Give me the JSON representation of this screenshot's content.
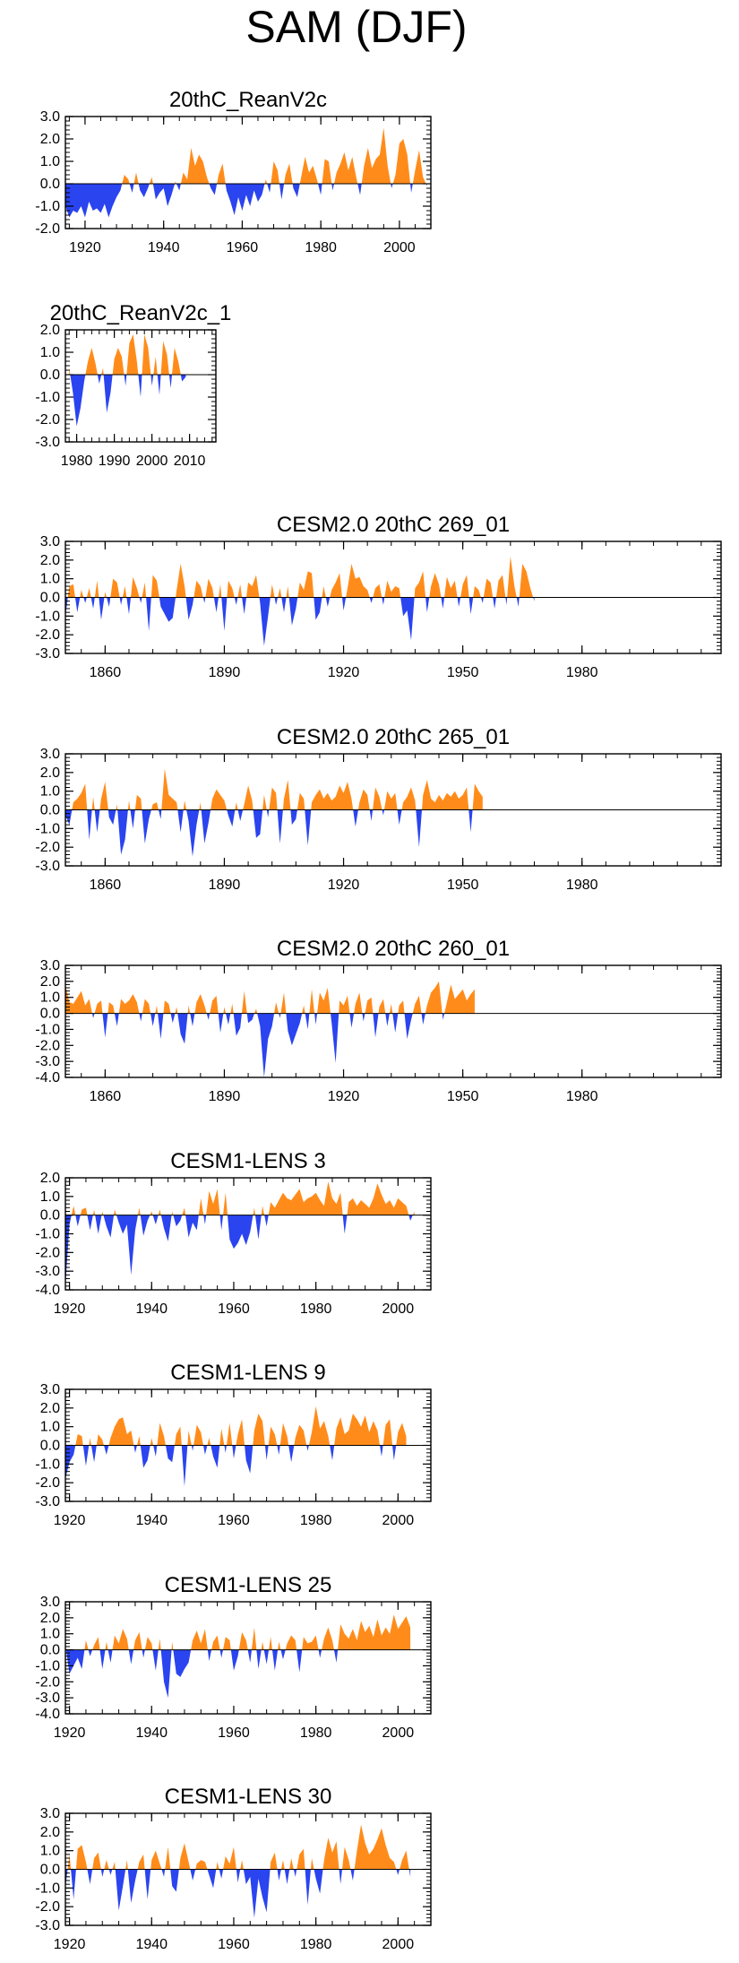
{
  "figure_title": "SAM (DJF)",
  "colors": {
    "positive": "#ff8c1a",
    "negative": "#2a44f0"
  },
  "chart_data": [
    {
      "type": "area",
      "title": "20thC_ReanV2c",
      "xlim": [
        1915,
        2008
      ],
      "ylim": [
        -2.0,
        3.0
      ],
      "yticks": [
        3.0,
        2.0,
        1.0,
        0.0,
        -1.0,
        -2.0
      ],
      "ytick_labels": [
        "3.0",
        "2.0",
        "1.0",
        "0.0",
        "-1.0",
        "-2.0"
      ],
      "xticks": [
        1920,
        1940,
        1960,
        1980,
        2000
      ],
      "xtick_labels": [
        "1920",
        "1940",
        "1960",
        "1980",
        "2000"
      ],
      "x_start": 1915,
      "values": [
        -1.0,
        -1.5,
        -1.2,
        -1.3,
        -1.0,
        -1.5,
        -0.8,
        -1.2,
        -1.1,
        -1.3,
        -0.9,
        -1.5,
        -1.0,
        -0.6,
        -0.3,
        0.4,
        0.2,
        -0.4,
        0.5,
        -0.3,
        -0.6,
        -0.2,
        0.3,
        -0.7,
        -0.4,
        -0.2,
        -1.0,
        -0.5,
        0.1,
        -0.3,
        0.5,
        0.2,
        1.6,
        0.8,
        1.3,
        1.0,
        0.3,
        -0.2,
        -0.5,
        0.4,
        0.9,
        -0.3,
        -0.8,
        -1.4,
        -0.6,
        -1.2,
        -0.5,
        -1.0,
        -0.3,
        -0.8,
        -0.5,
        0.2,
        -0.4,
        1.0,
        0.6,
        -0.7,
        0.4,
        0.9,
        -0.2,
        -0.6,
        0.3,
        1.2,
        0.5,
        0.8,
        0.2,
        -0.5,
        1.1,
        1.0,
        -0.3,
        0.5,
        0.9,
        1.4,
        0.6,
        1.2,
        0.3,
        -0.5,
        0.8,
        1.6,
        0.7,
        1.1,
        1.3,
        2.5,
        0.8,
        -0.2,
        0.4,
        1.8,
        2.0,
        1.3,
        -0.4,
        0.6,
        1.5,
        0.3,
        -0.1
      ]
    },
    {
      "type": "area",
      "title": "20thC_ReanV2c_1",
      "xlim": [
        1977,
        2017
      ],
      "ylim": [
        -3.0,
        2.0
      ],
      "yticks": [
        2.0,
        1.0,
        0.0,
        -1.0,
        -2.0,
        -3.0
      ],
      "ytick_labels": [
        "2.0",
        "1.0",
        "0.0",
        "-1.0",
        "-2.0",
        "-3.0"
      ],
      "xticks": [
        1980,
        1990,
        2000,
        2010
      ],
      "xtick_labels": [
        "1980",
        "1990",
        "2000",
        "2010"
      ],
      "x_start": 1978,
      "values": [
        0.3,
        -0.8,
        -2.3,
        -1.5,
        -0.3,
        0.6,
        1.2,
        0.5,
        -0.4,
        0.3,
        -1.7,
        -0.8,
        0.7,
        1.2,
        0.8,
        -0.5,
        1.4,
        1.8,
        0.6,
        -1.0,
        1.8,
        1.2,
        -0.5,
        0.8,
        -0.9,
        1.5,
        0.9,
        -0.6,
        1.2,
        0.6,
        -0.3,
        -0.1
      ]
    },
    {
      "type": "area",
      "title": "CESM2.0 20thC 269_01",
      "xlim": [
        1850,
        2015
      ],
      "ylim": [
        -3.0,
        3.0
      ],
      "yticks": [
        3.0,
        2.0,
        1.0,
        0.0,
        -1.0,
        -2.0,
        -3.0
      ],
      "ytick_labels": [
        "3.0",
        "2.0",
        "1.0",
        "0.0",
        "-1.0",
        "-2.0",
        "-3.0"
      ],
      "xticks": [
        1860,
        1890,
        1920,
        1950,
        1980
      ],
      "xtick_labels": [
        "1860",
        "1890",
        "1920",
        "1950",
        "1980"
      ],
      "x_start": 1850,
      "values": [
        -1.0,
        0.6,
        0.7,
        -0.8,
        0.4,
        -0.3,
        0.5,
        -0.6,
        0.9,
        -1.2,
        0.3,
        -0.5,
        1.0,
        0.8,
        -0.4,
        0.6,
        -0.9,
        1.1,
        0.5,
        -0.3,
        0.8,
        -1.8,
        1.2,
        0.9,
        -0.5,
        -0.9,
        -1.3,
        -1.1,
        0.4,
        1.8,
        0.6,
        -1.2,
        -0.4,
        0.9,
        0.6,
        -0.3,
        1.0,
        0.5,
        -0.8,
        0.7,
        -1.8,
        0.9,
        0.5,
        -0.4,
        0.7,
        -0.9,
        0.8,
        0.6,
        1.2,
        -0.3,
        -2.6,
        -1.0,
        0.7,
        -0.4,
        0.5,
        -0.8,
        0.6,
        -1.5,
        -0.6,
        0.8,
        0.4,
        1.4,
        1.3,
        -1.2,
        -0.8,
        0.6,
        -0.5,
        0.4,
        0.8,
        1.3,
        -0.7,
        0.5,
        1.8,
        1.0,
        1.1,
        0.6,
        0.4,
        -0.3,
        0.5,
        0.7,
        -0.4,
        0.9,
        0.3,
        0.6,
        0.5,
        -1.0,
        -0.7,
        -2.3,
        0.5,
        0.8,
        1.4,
        -0.8,
        0.6,
        1.3,
        0.7,
        -0.6,
        1.1,
        0.5,
        0.9,
        -0.5,
        0.7,
        1.2,
        -0.9,
        0.6,
        0.4,
        -0.3,
        1.0,
        0.8,
        -0.6,
        0.9,
        1.2,
        -0.4,
        2.2,
        0.6,
        -0.5,
        1.8,
        1.4,
        0.5,
        -0.2
      ]
    },
    {
      "type": "area",
      "title": "CESM2.0 20thC 265_01",
      "xlim": [
        1850,
        2015
      ],
      "ylim": [
        -3.0,
        3.0
      ],
      "yticks": [
        3.0,
        2.0,
        1.0,
        0.0,
        -1.0,
        -2.0,
        -3.0
      ],
      "ytick_labels": [
        "3.0",
        "2.0",
        "1.0",
        "0.0",
        "-1.0",
        "-2.0",
        "-3.0"
      ],
      "xticks": [
        1860,
        1890,
        1920,
        1950,
        1980
      ],
      "xtick_labels": [
        "1860",
        "1890",
        "1920",
        "1950",
        "1980"
      ],
      "x_start": 1850,
      "values": [
        -0.3,
        -0.8,
        0.4,
        0.6,
        0.9,
        1.4,
        -1.6,
        0.7,
        -1.2,
        0.6,
        1.5,
        -0.4,
        -0.8,
        0.3,
        -2.4,
        -1.6,
        0.5,
        -1.0,
        0.8,
        0.6,
        -1.8,
        -0.5,
        0.3,
        0.4,
        -0.5,
        2.2,
        0.8,
        0.6,
        0.4,
        -1.2,
        0.5,
        -0.6,
        -2.5,
        -0.8,
        0.4,
        -1.8,
        -0.7,
        0.6,
        1.1,
        0.8,
        0.5,
        -0.3,
        -0.9,
        0.4,
        -0.6,
        0.3,
        1.3,
        0.5,
        -1.5,
        -1.3,
        0.8,
        -0.4,
        1.2,
        0.9,
        -1.8,
        0.6,
        1.6,
        -0.8,
        -0.5,
        0.9,
        0.6,
        -1.9,
        0.4,
        0.8,
        1.1,
        0.6,
        0.9,
        0.5,
        0.7,
        1.3,
        0.9,
        1.5,
        0.6,
        -0.9,
        0.4,
        1.1,
        0.8,
        -0.6,
        1.2,
        0.7,
        -0.3,
        1.0,
        0.6,
        0.9,
        -0.8,
        0.4,
        0.7,
        1.2,
        0.5,
        -2.0,
        0.8,
        1.6,
        0.6,
        0.4,
        0.8,
        0.5,
        0.9,
        0.7,
        1.0,
        0.6,
        0.8,
        1.2,
        -1.2,
        1.4,
        1.0,
        0.7
      ]
    },
    {
      "type": "area",
      "title": "CESM2.0 20thC 260_01",
      "xlim": [
        1850,
        2015
      ],
      "ylim": [
        -4.0,
        3.0
      ],
      "yticks": [
        3.0,
        2.0,
        1.0,
        0.0,
        -1.0,
        -2.0,
        -3.0,
        -4.0
      ],
      "ytick_labels": [
        "3.0",
        "2.0",
        "1.0",
        "0.0",
        "-1.0",
        "-2.0",
        "-3.0",
        "-4.0"
      ],
      "xticks": [
        1860,
        1890,
        1920,
        1950,
        1980
      ],
      "xtick_labels": [
        "1860",
        "1890",
        "1920",
        "1950",
        "1980"
      ],
      "x_start": 1850,
      "values": [
        1.8,
        0.7,
        0.6,
        1.0,
        1.4,
        0.5,
        0.9,
        -0.3,
        0.6,
        0.8,
        -1.5,
        0.7,
        0.5,
        -0.8,
        0.9,
        0.6,
        0.8,
        1.2,
        0.7,
        -0.5,
        0.9,
        0.6,
        -0.8,
        0.5,
        -1.6,
        0.8,
        0.6,
        -0.6,
        0.4,
        -1.3,
        -1.9,
        0.5,
        -0.8,
        0.7,
        1.2,
        0.5,
        -0.4,
        0.8,
        1.1,
        -1.2,
        0.4,
        -0.7,
        0.6,
        -1.4,
        -0.9,
        1.4,
        -0.6,
        -0.4,
        0.3,
        -0.8,
        -4.0,
        -1.6,
        -0.8,
        0.7,
        -0.3,
        1.3,
        -1.1,
        -2.0,
        -1.3,
        -0.6,
        0.5,
        -1.0,
        1.5,
        -0.7,
        1.3,
        0.8,
        1.6,
        -0.6,
        -3.1,
        0.8,
        0.5,
        1.1,
        -0.9,
        0.6,
        1.3,
        -0.5,
        0.8,
        1.0,
        -1.5,
        0.4,
        0.9,
        -0.8,
        0.6,
        -1.2,
        0.5,
        0.8,
        -1.6,
        -0.4,
        0.6,
        1.1,
        -0.7,
        0.5,
        1.3,
        1.6,
        2.0,
        -0.4,
        0.7,
        1.8,
        0.9,
        1.2,
        1.5,
        0.8,
        1.2,
        1.5
      ]
    },
    {
      "type": "area",
      "title": "CESM1-LENS 3",
      "xlim": [
        1919,
        2008
      ],
      "ylim": [
        -4.0,
        2.0
      ],
      "yticks": [
        2.0,
        1.0,
        0.0,
        -1.0,
        -2.0,
        -3.0,
        -4.0
      ],
      "ytick_labels": [
        "2.0",
        "1.0",
        "0.0",
        "-1.0",
        "-2.0",
        "-3.0",
        "-4.0"
      ],
      "xticks": [
        1920,
        1940,
        1960,
        1980,
        2000
      ],
      "xtick_labels": [
        "1920",
        "1940",
        "1960",
        "1980",
        "2000"
      ],
      "x_start": 1919,
      "values": [
        -3.8,
        -0.5,
        0.5,
        -0.6,
        0.3,
        0.4,
        -0.8,
        0.3,
        -1.0,
        0.2,
        -0.6,
        -1.2,
        0.3,
        -0.4,
        -1.0,
        -0.5,
        -3.2,
        -0.8,
        0.4,
        -1.1,
        -0.3,
        0.2,
        -0.5,
        0.3,
        -0.7,
        -1.4,
        0.2,
        -0.6,
        -0.3,
        0.4,
        -1.2,
        -0.4,
        -0.8,
        0.9,
        -0.5,
        1.3,
        0.6,
        1.4,
        -0.8,
        1.2,
        -1.3,
        -1.8,
        -1.5,
        -1.0,
        -1.6,
        -0.9,
        0.4,
        -1.3,
        0.5,
        -0.6,
        0.7,
        0.4,
        0.8,
        1.2,
        0.9,
        0.8,
        1.1,
        1.4,
        0.7,
        0.9,
        1.0,
        1.2,
        0.8,
        0.5,
        1.8,
        0.9,
        0.6,
        1.2,
        -1.0,
        0.7,
        0.9,
        0.5,
        0.8,
        0.6,
        0.4,
        0.9,
        1.7,
        1.1,
        0.6,
        0.8,
        0.4,
        0.9,
        0.7,
        0.5,
        -0.3,
        0.2
      ]
    },
    {
      "type": "area",
      "title": "CESM1-LENS 9",
      "xlim": [
        1919,
        2008
      ],
      "ylim": [
        -3.0,
        3.0
      ],
      "yticks": [
        3.0,
        2.0,
        1.0,
        0.0,
        -1.0,
        -2.0,
        -3.0
      ],
      "ytick_labels": [
        "3.0",
        "2.0",
        "1.0",
        "0.0",
        "-1.0",
        "-2.0",
        "-3.0"
      ],
      "xticks": [
        1920,
        1940,
        1960,
        1980,
        2000
      ],
      "xtick_labels": [
        "1920",
        "1940",
        "1960",
        "1980",
        "2000"
      ],
      "x_start": 1919,
      "values": [
        -1.8,
        -0.9,
        -0.5,
        0.6,
        0.5,
        -1.1,
        0.4,
        -0.9,
        0.6,
        0.3,
        -0.5,
        0.4,
        1.0,
        1.4,
        1.5,
        0.6,
        0.8,
        -0.4,
        0.5,
        -1.2,
        -0.8,
        0.4,
        -0.6,
        1.2,
        0.5,
        -0.7,
        -0.9,
        0.6,
        1.0,
        -2.2,
        0.8,
        -0.3,
        1.1,
        0.7,
        -0.5,
        0.4,
        -0.6,
        -1.2,
        0.9,
        -0.4,
        1.2,
        -0.7,
        0.6,
        1.4,
        -0.8,
        -1.5,
        0.8,
        1.7,
        1.3,
        -0.8,
        1.0,
        0.6,
        -0.5,
        1.2,
        0.5,
        -0.9,
        0.4,
        1.1,
        0.8,
        -0.3,
        0.7,
        2.1,
        0.9,
        1.3,
        0.5,
        -0.8,
        0.9,
        1.5,
        0.6,
        0.8,
        1.7,
        1.4,
        1.0,
        1.6,
        0.7,
        1.3,
        0.8,
        -0.6,
        1.1,
        1.4,
        -0.8,
        0.7,
        1.2,
        0.5
      ]
    },
    {
      "type": "area",
      "title": "CESM1-LENS 25",
      "xlim": [
        1919,
        2008
      ],
      "ylim": [
        -4.0,
        3.0
      ],
      "yticks": [
        3.0,
        2.0,
        1.0,
        0.0,
        -1.0,
        -2.0,
        -3.0,
        -4.0
      ],
      "ytick_labels": [
        "3.0",
        "2.0",
        "1.0",
        "0.0",
        "-1.0",
        "-2.0",
        "-3.0",
        "-4.0"
      ],
      "xticks": [
        1920,
        1940,
        1960,
        1980,
        2000
      ],
      "xtick_labels": [
        "1920",
        "1940",
        "1960",
        "1980",
        "2000"
      ],
      "x_start": 1919,
      "values": [
        0.3,
        -1.5,
        -1.0,
        -0.5,
        -1.2,
        0.6,
        -0.4,
        0.3,
        0.8,
        -1.2,
        0.5,
        -0.8,
        0.9,
        0.4,
        1.3,
        0.7,
        -0.9,
        0.6,
        1.1,
        -0.5,
        0.8,
        0.4,
        -1.3,
        0.7,
        -2.0,
        -3.0,
        0.5,
        -1.5,
        -1.7,
        -1.2,
        -0.8,
        0.6,
        1.2,
        0.4,
        1.3,
        -0.7,
        0.5,
        0.9,
        -0.5,
        0.8,
        0.6,
        -1.3,
        -0.4,
        1.1,
        0.6,
        -0.8,
        1.4,
        -1.2,
        0.5,
        -0.9,
        0.8,
        -1.3,
        0.5,
        -0.6,
        0.4,
        0.9,
        0.6,
        -1.4,
        0.8,
        0.4,
        0.5,
        0.9,
        -0.5,
        0.7,
        1.4,
        0.6,
        -0.8,
        1.6,
        1.0,
        0.7,
        1.3,
        0.6,
        1.8,
        1.1,
        1.5,
        0.8,
        1.9,
        0.9,
        1.4,
        1.0,
        2.2,
        1.3,
        1.7,
        2.1,
        1.4
      ]
    },
    {
      "type": "area",
      "title": "CESM1-LENS 30",
      "xlim": [
        1919,
        2008
      ],
      "ylim": [
        -3.0,
        3.0
      ],
      "yticks": [
        3.0,
        2.0,
        1.0,
        0.0,
        -1.0,
        -2.0,
        -3.0
      ],
      "ytick_labels": [
        "3.0",
        "2.0",
        "1.0",
        "0.0",
        "-1.0",
        "-2.0",
        "-3.0"
      ],
      "xticks": [
        1920,
        1940,
        1960,
        1980,
        2000
      ],
      "xtick_labels": [
        "1920",
        "1940",
        "1960",
        "1980",
        "2000"
      ],
      "x_start": 1919,
      "values": [
        -1.0,
        0.8,
        -1.6,
        1.1,
        1.3,
        0.4,
        -0.8,
        0.6,
        0.9,
        -0.4,
        0.5,
        -0.3,
        0.4,
        -2.2,
        -0.9,
        0.5,
        -1.8,
        -0.6,
        0.4,
        0.8,
        -1.6,
        0.5,
        1.0,
        0.3,
        -0.4,
        1.2,
        -0.9,
        -1.2,
        0.6,
        1.4,
        0.4,
        -0.6,
        0.3,
        0.5,
        0.4,
        -0.3,
        -1.0,
        0.4,
        -0.5,
        0.7,
        0.3,
        1.2,
        -0.7,
        0.5,
        -0.8,
        -0.4,
        -2.6,
        -0.5,
        -1.5,
        -2.3,
        0.4,
        0.9,
        -0.6,
        0.5,
        -0.8,
        0.6,
        -0.4,
        0.8,
        1.1,
        -1.9,
        0.6,
        -0.5,
        -1.3,
        0.5,
        1.7,
        0.9,
        1.5,
        -0.8,
        1.2,
        0.5,
        -0.6,
        1.0,
        2.4,
        1.4,
        0.8,
        1.1,
        1.6,
        2.2,
        1.3,
        0.6,
        0.4,
        -0.3,
        0.5,
        1.0,
        -0.4
      ]
    }
  ]
}
